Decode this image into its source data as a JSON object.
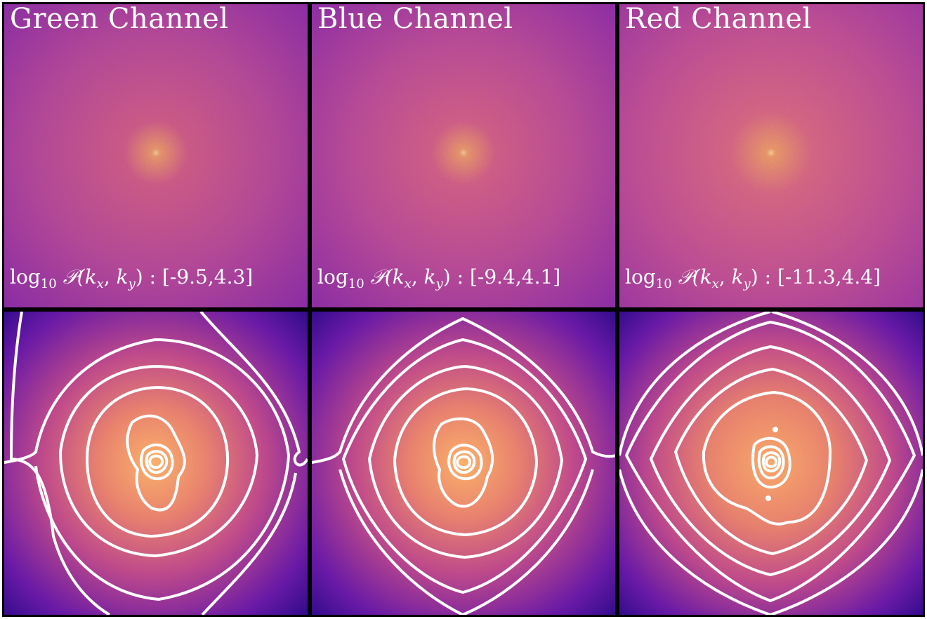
{
  "panels_top": [
    {
      "title": "Green Channel",
      "log_label": "log",
      "log_sub": "10",
      "formula_prefix": "𝒫(",
      "formula_kx": "k",
      "formula_kx_sub": "x",
      "formula_mid": ", ",
      "formula_ky": "k",
      "formula_ky_sub": "y",
      "formula_suffix": ") : ",
      "range": "[-9.5,4.3]"
    },
    {
      "title": "Blue Channel",
      "log_label": "log",
      "log_sub": "10",
      "formula_prefix": "𝒫(",
      "formula_kx": "k",
      "formula_kx_sub": "x",
      "formula_mid": ", ",
      "formula_ky": "k",
      "formula_ky_sub": "y",
      "formula_suffix": ") : ",
      "range": "[-9.4,4.1]"
    },
    {
      "title": "Red Channel",
      "log_label": "log",
      "log_sub": "10",
      "formula_prefix": "𝒫(",
      "formula_kx": "k",
      "formula_kx_sub": "x",
      "formula_mid": ", ",
      "formula_ky": "k",
      "formula_ky_sub": "y",
      "formula_suffix": ") : ",
      "range": "[-11.3,4.4]"
    }
  ],
  "colors": {
    "power_bg": "#b83f96",
    "power_center": "#f4a45a",
    "contour_outer": "#3b0a9a",
    "contour_mid": "#c43f8a",
    "contour_center": "#f7a868",
    "contour_line": "#ffffff",
    "border": "#000000"
  }
}
